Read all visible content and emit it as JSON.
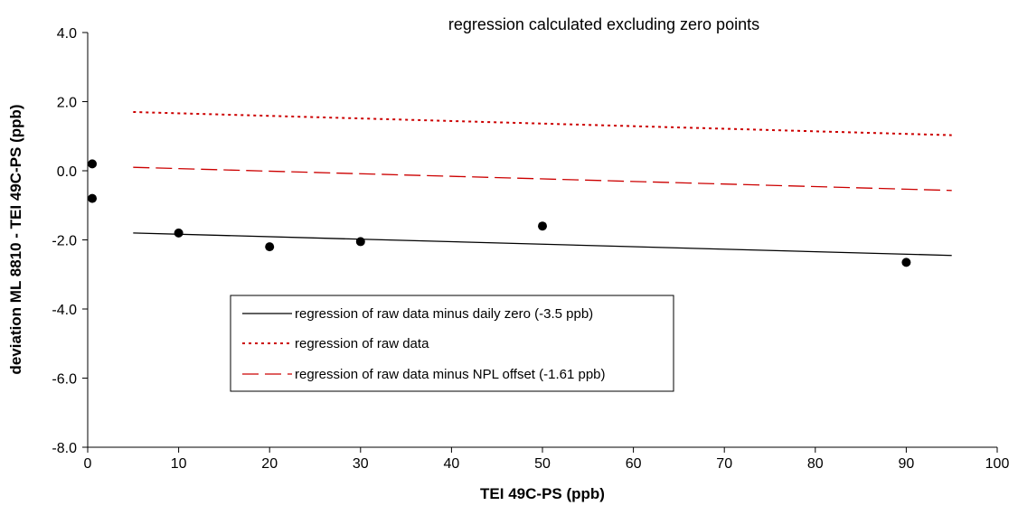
{
  "chart_data": {
    "type": "scatter",
    "title": "regression calculated excluding zero points",
    "xlabel": "TEI 49C-PS (ppb)",
    "ylabel": "deviation ML 8810 - TEI 49C-PS (ppb)",
    "xlim": [
      0,
      100
    ],
    "ylim": [
      -8,
      4
    ],
    "x_ticks": [
      0,
      10,
      20,
      30,
      40,
      50,
      60,
      70,
      80,
      90,
      100
    ],
    "y_ticks": [
      4,
      2,
      0,
      -2,
      -4,
      -6,
      -8
    ],
    "y_tick_labels": [
      "4.0",
      "2.0",
      "0.0",
      "-2.0",
      "-4.0",
      "-6.0",
      "-8.0"
    ],
    "grid": false,
    "legend_position": "center-left",
    "points": [
      {
        "x": 0.5,
        "y": 0.2
      },
      {
        "x": 0.5,
        "y": -0.8
      },
      {
        "x": 10,
        "y": -1.8
      },
      {
        "x": 20,
        "y": -2.2
      },
      {
        "x": 30,
        "y": -2.05
      },
      {
        "x": 50,
        "y": -1.6
      },
      {
        "x": 90,
        "y": -2.65
      }
    ],
    "point_color": "#000000",
    "series": [
      {
        "name": "regression of raw data minus daily zero (-3.5 ppb)",
        "x": [
          5,
          95
        ],
        "y": [
          -1.8,
          -2.45
        ],
        "color": "#000000",
        "dash": "solid"
      },
      {
        "name": "regression of raw data",
        "x": [
          5,
          95
        ],
        "y": [
          1.7,
          1.03
        ],
        "color": "#cc0000",
        "dash": "dotted"
      },
      {
        "name": "regression of raw data minus NPL offset (-1.61 ppb)",
        "x": [
          5,
          95
        ],
        "y": [
          0.1,
          -0.57
        ],
        "color": "#cc0000",
        "dash": "dashed"
      }
    ]
  }
}
